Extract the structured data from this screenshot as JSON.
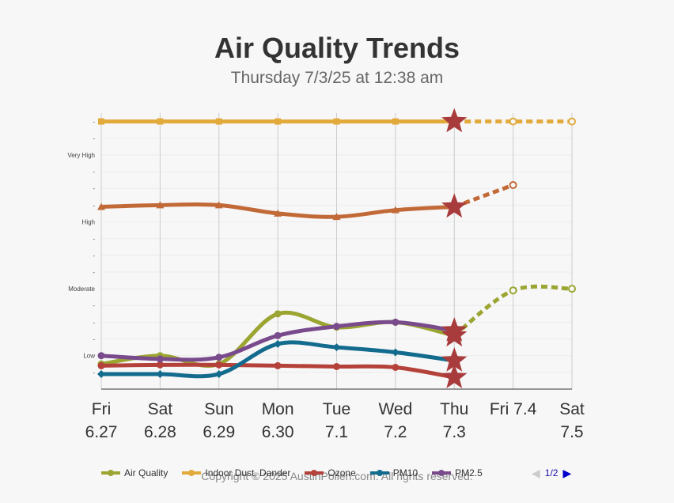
{
  "title": "Air Quality Trends",
  "subtitle": "Thursday 7/3/25 at 12:38 am",
  "copyright": "Copyright © 2025 AustinPollen.com.  All rights reserved.",
  "pager": {
    "text": "1/2"
  },
  "chart_data": {
    "type": "line",
    "categories": [
      [
        "Fri",
        "6.27"
      ],
      [
        "Sat",
        "6.28"
      ],
      [
        "Sun",
        "6.29"
      ],
      [
        "Mon",
        "6.30"
      ],
      [
        "Tue",
        "7.1"
      ],
      [
        "Wed",
        "7.2"
      ],
      [
        "Thu",
        "7.3"
      ],
      [
        "Fri 7.4",
        ""
      ],
      [
        "Sat",
        "7.5"
      ]
    ],
    "ylim": [
      0,
      16.5
    ],
    "y_ticks": [
      {
        "value": 1,
        "label": "-"
      },
      {
        "value": 2,
        "label": "Low"
      },
      {
        "value": 3,
        "label": "-"
      },
      {
        "value": 4,
        "label": "-"
      },
      {
        "value": 5,
        "label": "-"
      },
      {
        "value": 6,
        "label": "Moderate"
      },
      {
        "value": 7,
        "label": "-"
      },
      {
        "value": 8,
        "label": "-"
      },
      {
        "value": 9,
        "label": "-"
      },
      {
        "value": 10,
        "label": "High"
      },
      {
        "value": 11,
        "label": "-"
      },
      {
        "value": 12,
        "label": "-"
      },
      {
        "value": 13,
        "label": "-"
      },
      {
        "value": 14,
        "label": "Very High"
      },
      {
        "value": 15,
        "label": "-"
      },
      {
        "value": 16,
        "label": "-"
      }
    ],
    "current_index": 6,
    "grid": true,
    "legend_position": "bottom",
    "series": [
      {
        "name": "Air Quality",
        "color": "#9ba532",
        "marker": "circle",
        "values": [
          1.5,
          2.0,
          1.5,
          4.5,
          3.7,
          4.0,
          3.2,
          5.9,
          6.0
        ]
      },
      {
        "name": "Indoor Dust, Dander",
        "color": "#e2a93b",
        "marker": "square",
        "values": [
          16.0,
          16.0,
          16.0,
          16.0,
          16.0,
          16.0,
          16.0,
          16.0,
          16.0
        ]
      },
      {
        "name": "Ozone",
        "color": "#b5423a",
        "marker": "circle",
        "values": [
          1.4,
          1.45,
          1.45,
          1.4,
          1.35,
          1.3,
          0.7,
          null,
          null
        ]
      },
      {
        "name": "PM10",
        "color": "#136b8e",
        "marker": "diamond",
        "values": [
          0.9,
          0.9,
          0.9,
          2.7,
          2.5,
          2.2,
          1.7,
          null,
          null
        ]
      },
      {
        "name": "PM2.5",
        "color": "#7a4b8c",
        "marker": "circle",
        "values": [
          2.0,
          1.8,
          1.9,
          3.2,
          3.75,
          4.0,
          3.5,
          null,
          null
        ]
      },
      {
        "name": "",
        "color": "#c26938",
        "marker": "triangle",
        "values": [
          10.9,
          11.0,
          11.0,
          10.5,
          10.3,
          10.7,
          10.9,
          12.2,
          null
        ]
      }
    ]
  },
  "legend": [
    {
      "label": "Air Quality",
      "color": "#9ba532"
    },
    {
      "label": "Indoor Dust, Dander",
      "color": "#e2a93b"
    },
    {
      "label": "Ozone",
      "color": "#b5423a"
    },
    {
      "label": "PM10",
      "color": "#136b8e"
    },
    {
      "label": "PM2.5",
      "color": "#7a4b8c"
    }
  ]
}
